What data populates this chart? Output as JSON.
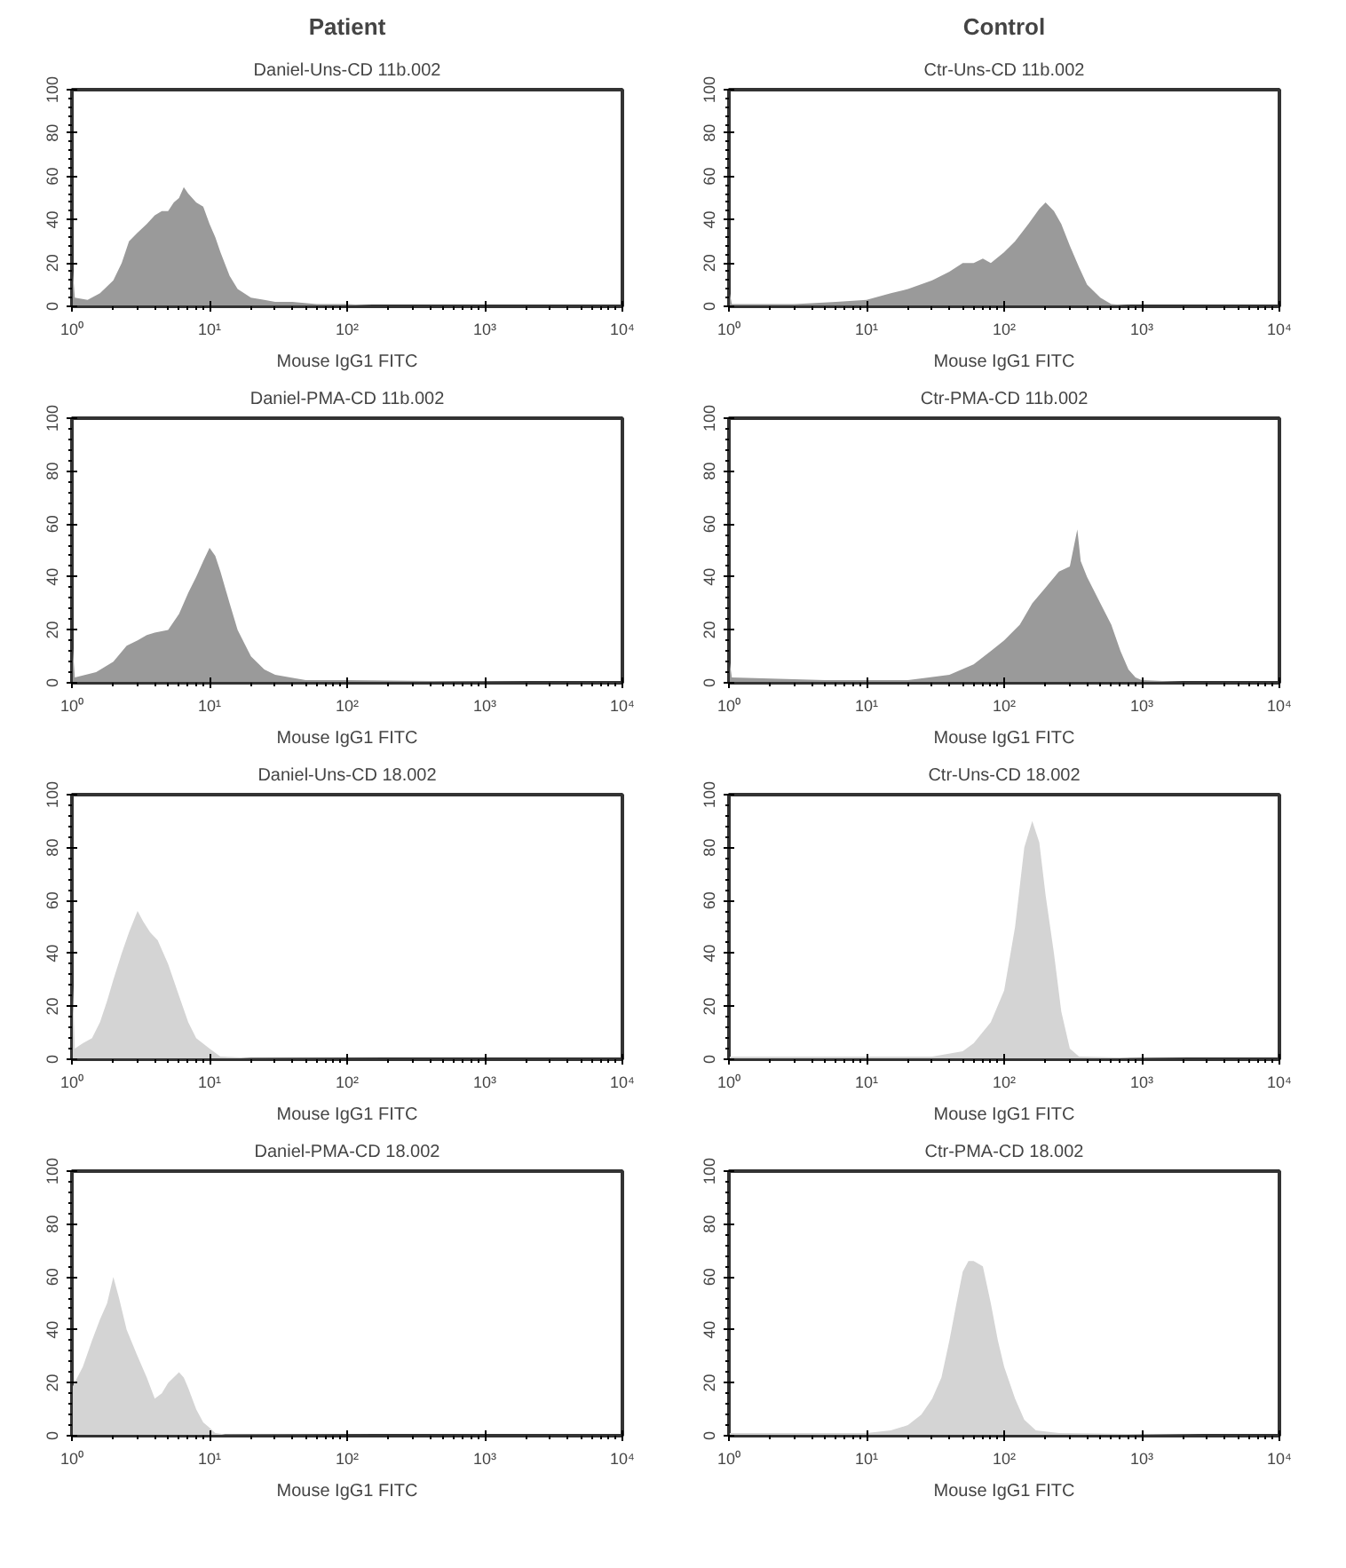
{
  "chart_data": [
    {
      "type": "area",
      "title": "Daniel-Uns-CD 11b.002",
      "annotations": [
        "Patient"
      ],
      "xlabel": "Mouse IgG1 FITC",
      "log": "x",
      "color": "#9a9a9a",
      "xlim": [
        1,
        10000
      ],
      "ylim": [
        0,
        100
      ],
      "xticks": [
        {
          "value": 1,
          "label": "10⁰"
        },
        {
          "value": 10,
          "label": "10¹"
        },
        {
          "value": 100,
          "label": "10²"
        },
        {
          "value": 1000,
          "label": "10³"
        },
        {
          "value": 10000,
          "label": "10⁴"
        }
      ],
      "yticks": [
        0,
        20,
        40,
        60,
        80,
        100
      ],
      "x": [
        1,
        1.05,
        1.3,
        1.6,
        2,
        2.3,
        2.6,
        3,
        3.5,
        4,
        4.5,
        5,
        5.5,
        6,
        6.5,
        7,
        8,
        9,
        10,
        11,
        12,
        14,
        16,
        20,
        25,
        30,
        40,
        60,
        100,
        200,
        1000,
        10000
      ],
      "values": [
        22,
        4,
        3,
        6,
        12,
        20,
        30,
        34,
        38,
        42,
        44,
        44,
        48,
        50,
        55,
        52,
        48,
        46,
        38,
        32,
        25,
        14,
        8,
        4,
        3,
        2,
        2,
        1,
        1,
        0,
        0,
        0
      ]
    },
    {
      "type": "area",
      "title": "Ctr-Uns-CD 11b.002",
      "annotations": [
        "Control"
      ],
      "xlabel": "Mouse IgG1 FITC",
      "log": "x",
      "color": "#9a9a9a",
      "xlim": [
        1,
        10000
      ],
      "ylim": [
        0,
        100
      ],
      "xticks": [
        {
          "value": 1,
          "label": "10⁰"
        },
        {
          "value": 10,
          "label": "10¹"
        },
        {
          "value": 100,
          "label": "10²"
        },
        {
          "value": 1000,
          "label": "10³"
        },
        {
          "value": 10000,
          "label": "10⁴"
        }
      ],
      "yticks": [
        0,
        20,
        40,
        60,
        80,
        100
      ],
      "x": [
        1,
        1.05,
        3,
        6,
        10,
        15,
        20,
        30,
        40,
        50,
        60,
        70,
        80,
        100,
        120,
        150,
        180,
        200,
        230,
        260,
        300,
        350,
        400,
        500,
        600,
        1000,
        10000
      ],
      "values": [
        8,
        1,
        1,
        2,
        3,
        6,
        8,
        12,
        16,
        20,
        20,
        22,
        20,
        25,
        30,
        38,
        45,
        48,
        44,
        38,
        28,
        18,
        10,
        4,
        1,
        0,
        0
      ]
    },
    {
      "type": "area",
      "title": "Daniel-PMA-CD 11b.002",
      "xlabel": "Mouse IgG1 FITC",
      "log": "x",
      "color": "#9a9a9a",
      "xlim": [
        1,
        10000
      ],
      "ylim": [
        0,
        100
      ],
      "xticks": [
        {
          "value": 1,
          "label": "10⁰"
        },
        {
          "value": 10,
          "label": "10¹"
        },
        {
          "value": 100,
          "label": "10²"
        },
        {
          "value": 1000,
          "label": "10³"
        },
        {
          "value": 10000,
          "label": "10⁴"
        }
      ],
      "yticks": [
        0,
        20,
        40,
        60,
        80,
        100
      ],
      "x": [
        1,
        1.05,
        1.5,
        2,
        2.5,
        3,
        3.5,
        4,
        5,
        6,
        7,
        8,
        9,
        10,
        11,
        12,
        14,
        16,
        20,
        25,
        30,
        50,
        100,
        1000,
        10000
      ],
      "values": [
        18,
        2,
        4,
        8,
        14,
        16,
        18,
        19,
        20,
        26,
        34,
        40,
        46,
        51,
        48,
        42,
        30,
        20,
        10,
        5,
        3,
        1,
        1,
        0.5,
        0
      ]
    },
    {
      "type": "area",
      "title": "Ctr-PMA-CD 11b.002",
      "xlabel": "Mouse IgG1 FITC",
      "log": "x",
      "color": "#9a9a9a",
      "xlim": [
        1,
        10000
      ],
      "ylim": [
        0,
        100
      ],
      "xticks": [
        {
          "value": 1,
          "label": "10⁰"
        },
        {
          "value": 10,
          "label": "10¹"
        },
        {
          "value": 100,
          "label": "10²"
        },
        {
          "value": 1000,
          "label": "10³"
        },
        {
          "value": 10000,
          "label": "10⁴"
        }
      ],
      "yticks": [
        0,
        20,
        40,
        60,
        80,
        100
      ],
      "x": [
        1,
        1.05,
        5,
        20,
        40,
        60,
        80,
        100,
        130,
        160,
        200,
        250,
        300,
        340,
        360,
        400,
        500,
        600,
        700,
        800,
        900,
        1000,
        2000,
        10000
      ],
      "values": [
        10,
        2,
        1,
        1,
        3,
        7,
        12,
        16,
        22,
        30,
        36,
        42,
        44,
        58,
        46,
        40,
        30,
        22,
        12,
        5,
        2,
        1,
        0.3,
        0
      ]
    },
    {
      "type": "area",
      "title": "Daniel-Uns-CD 18.002",
      "xlabel": "Mouse IgG1 FITC",
      "log": "x",
      "color": "#d4d4d4",
      "xlim": [
        1,
        10000
      ],
      "ylim": [
        0,
        100
      ],
      "xticks": [
        {
          "value": 1,
          "label": "10⁰"
        },
        {
          "value": 10,
          "label": "10¹"
        },
        {
          "value": 100,
          "label": "10²"
        },
        {
          "value": 1000,
          "label": "10³"
        },
        {
          "value": 10000,
          "label": "10⁴"
        }
      ],
      "yticks": [
        0,
        20,
        40,
        60,
        80,
        100
      ],
      "x": [
        1,
        1.05,
        1.2,
        1.4,
        1.6,
        1.8,
        2,
        2.3,
        2.6,
        3,
        3.3,
        3.7,
        4.2,
        5,
        6,
        7,
        8,
        10,
        12,
        20,
        10000
      ],
      "values": [
        38,
        4,
        6,
        8,
        14,
        22,
        30,
        40,
        48,
        56,
        52,
        48,
        45,
        36,
        24,
        14,
        8,
        4,
        1,
        0.5,
        0
      ]
    },
    {
      "type": "area",
      "title": "Ctr-Uns-CD 18.002",
      "xlabel": "Mouse IgG1 FITC",
      "log": "x",
      "color": "#d4d4d4",
      "xlim": [
        1,
        10000
      ],
      "ylim": [
        0,
        100
      ],
      "xticks": [
        {
          "value": 1,
          "label": "10⁰"
        },
        {
          "value": 10,
          "label": "10¹"
        },
        {
          "value": 100,
          "label": "10²"
        },
        {
          "value": 1000,
          "label": "10³"
        },
        {
          "value": 10000,
          "label": "10⁴"
        }
      ],
      "yticks": [
        0,
        20,
        40,
        60,
        80,
        100
      ],
      "x": [
        1,
        10,
        30,
        50,
        60,
        80,
        100,
        120,
        140,
        160,
        180,
        200,
        230,
        260,
        300,
        350,
        1000,
        10000
      ],
      "values": [
        1,
        1,
        1,
        3,
        6,
        14,
        26,
        50,
        80,
        90,
        82,
        62,
        40,
        18,
        4,
        1,
        0.5,
        0
      ]
    },
    {
      "type": "area",
      "title": "Daniel-PMA-CD 18.002",
      "xlabel": "Mouse IgG1 FITC",
      "log": "x",
      "color": "#d4d4d4",
      "xlim": [
        1,
        10000
      ],
      "ylim": [
        0,
        100
      ],
      "xticks": [
        {
          "value": 1,
          "label": "10⁰"
        },
        {
          "value": 10,
          "label": "10¹"
        },
        {
          "value": 100,
          "label": "10²"
        },
        {
          "value": 1000,
          "label": "10³"
        },
        {
          "value": 10000,
          "label": "10⁴"
        }
      ],
      "yticks": [
        0,
        20,
        40,
        60,
        80,
        100
      ],
      "x": [
        1,
        1.2,
        1.4,
        1.6,
        1.8,
        2,
        2.2,
        2.5,
        3,
        3.5,
        4,
        4.5,
        5,
        6,
        6.5,
        7,
        8,
        9,
        10,
        11,
        13,
        10000
      ],
      "values": [
        18,
        26,
        36,
        44,
        50,
        60,
        52,
        40,
        30,
        22,
        14,
        16,
        20,
        24,
        22,
        18,
        10,
        5,
        3,
        1,
        0.5,
        0
      ]
    },
    {
      "type": "area",
      "title": "Ctr-PMA-CD 18.002",
      "xlabel": "Mouse IgG1 FITC",
      "log": "x",
      "color": "#d4d4d4",
      "xlim": [
        1,
        10000
      ],
      "ylim": [
        0,
        100
      ],
      "xticks": [
        {
          "value": 1,
          "label": "10⁰"
        },
        {
          "value": 10,
          "label": "10¹"
        },
        {
          "value": 100,
          "label": "10²"
        },
        {
          "value": 1000,
          "label": "10³"
        },
        {
          "value": 10000,
          "label": "10⁴"
        }
      ],
      "yticks": [
        0,
        20,
        40,
        60,
        80,
        100
      ],
      "x": [
        1,
        10,
        15,
        20,
        25,
        30,
        35,
        40,
        45,
        50,
        55,
        60,
        70,
        80,
        90,
        100,
        120,
        140,
        170,
        250,
        10000
      ],
      "values": [
        1,
        1,
        2,
        4,
        8,
        14,
        22,
        36,
        50,
        62,
        66,
        66,
        64,
        50,
        36,
        26,
        14,
        6,
        2,
        1,
        0
      ]
    }
  ]
}
